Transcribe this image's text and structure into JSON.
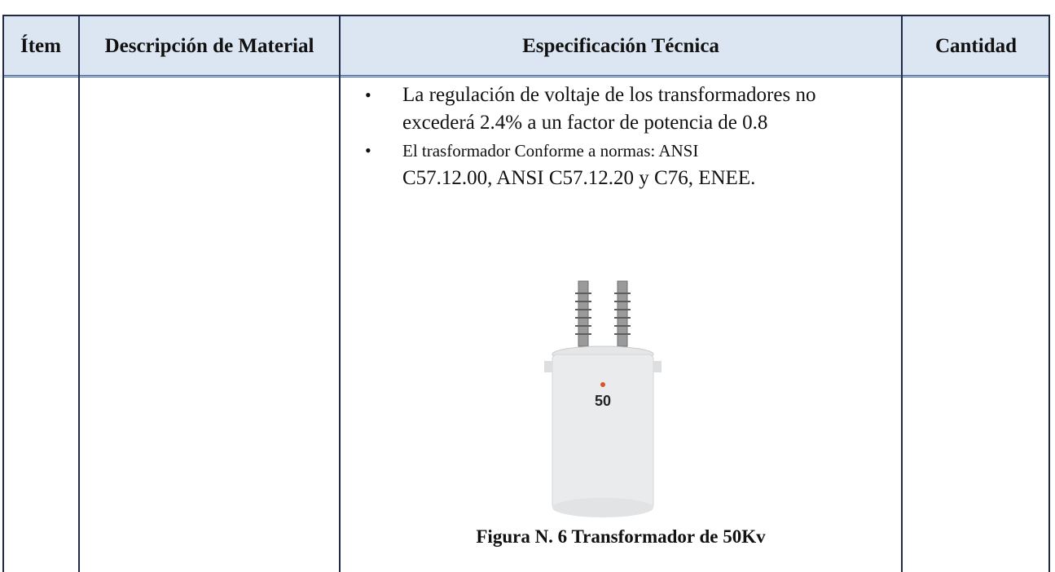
{
  "table": {
    "headers": [
      "Ítem",
      "Descripción de Material",
      "Especificación Técnica",
      "Cantidad"
    ],
    "bullets": [
      [
        "La regulación de voltaje de los transformadores no excederá 2.4% a un factor de potencia de 0.8"
      ],
      [
        "El trasformador Conforme a normas: ANSI",
        "C57.12.00, ANSI C57.12.20 y C76, ENEE."
      ]
    ],
    "figure": {
      "label": "50",
      "caption": "Figura N. 6 Transformador de 50Kv"
    }
  }
}
